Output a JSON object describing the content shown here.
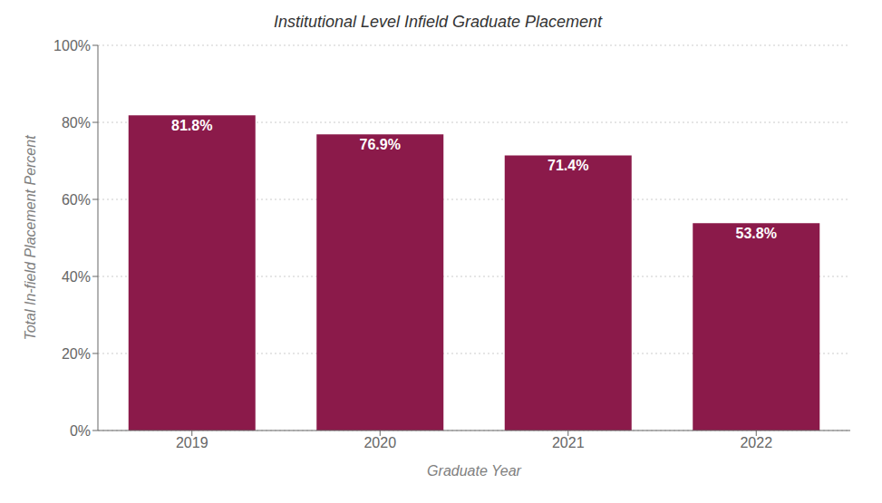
{
  "chart_data": {
    "type": "bar",
    "title": "Institutional Level Infield Graduate Placement",
    "xlabel": "Graduate Year",
    "ylabel": "Total In-field Placement Percent",
    "categories": [
      "2019",
      "2020",
      "2021",
      "2022"
    ],
    "values": [
      81.8,
      76.9,
      71.4,
      53.8
    ],
    "value_labels": [
      "81.8%",
      "76.9%",
      "71.4%",
      "53.8%"
    ],
    "data_labels": true,
    "color": "#8B1A4A",
    "ylim": [
      0,
      100
    ],
    "yticks": [
      {
        "value": 0,
        "label": "0%"
      },
      {
        "value": 20,
        "label": "20%"
      },
      {
        "value": 40,
        "label": "40%"
      },
      {
        "value": 60,
        "label": "60%"
      },
      {
        "value": 80,
        "label": "80%"
      },
      {
        "value": 100,
        "label": "100%"
      }
    ],
    "grid": true
  }
}
